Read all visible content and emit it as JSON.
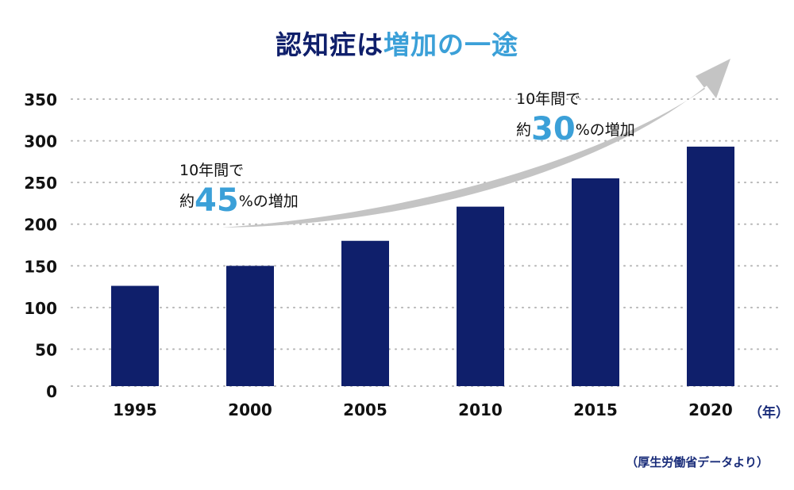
{
  "title": {
    "part1": "認知症は",
    "part2": "増加の一途"
  },
  "colors": {
    "bar": "#0f1f6b",
    "accent": "#3ba0d8",
    "title_dark": "#0f1f6b",
    "arrow": "#c4c4c4",
    "grid": "#b5b5b5"
  },
  "annotations": [
    {
      "line1": "10年間で",
      "prefix": "約",
      "value": "45",
      "suffix": "%の増加"
    },
    {
      "line1": "10年間で",
      "prefix": "約",
      "value": "30",
      "suffix": "%の増加"
    }
  ],
  "x_unit": "（年）",
  "source": "（厚生労働省データより）",
  "chart_data": {
    "type": "bar",
    "categories": [
      "1995",
      "2000",
      "2005",
      "2010",
      "2015",
      "2020"
    ],
    "values": [
      126,
      150,
      180,
      221,
      255,
      293
    ],
    "ylim": [
      0,
      350
    ],
    "yticks": [
      "0",
      "50",
      "100",
      "150",
      "200",
      "250",
      "300",
      "350"
    ],
    "grid": true,
    "legend": "none"
  }
}
